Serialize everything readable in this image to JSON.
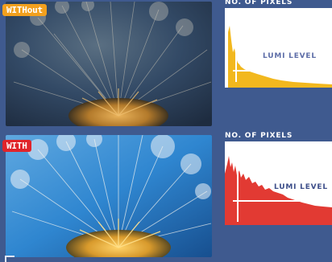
{
  "panels": [
    {
      "badge": "WITHout",
      "badge_color": "#f2a01e"
    },
    {
      "badge": "WITH",
      "badge_color": "#e0242a"
    }
  ],
  "histograms": [
    {
      "ylabel": "NO. OF PIXELS",
      "xlabel": "LUMI LEVEL",
      "fill_color": "#f2b81e"
    },
    {
      "ylabel": "NO. OF PIXELS",
      "xlabel": "LUMI LEVEL",
      "fill_color": "#e23a33"
    }
  ],
  "colors": {
    "background": "#3f5a8f"
  }
}
